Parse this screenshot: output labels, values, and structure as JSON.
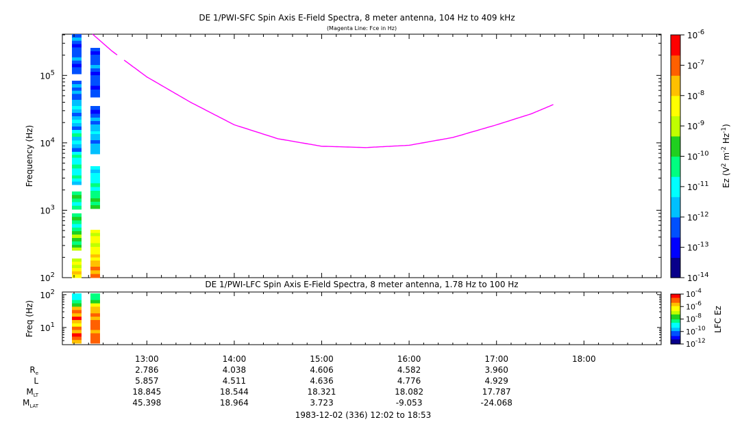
{
  "colors": {
    "fce_line": "#ff00ff",
    "colormap": [
      "#08008a",
      "#0000ff",
      "#0050ff",
      "#00c0ff",
      "#00ffff",
      "#00ff80",
      "#20d020",
      "#c0ff00",
      "#ffff00",
      "#ffc000",
      "#ff6000",
      "#ff0000"
    ]
  },
  "chart_data": [
    {
      "type": "heatmap",
      "title": "DE 1/PWI-SFC  Spin Axis E-Field Spectra, 8 meter antenna, 104 Hz to 409 kHz",
      "subtitle": "(Magenta Line: Fce in Hz)",
      "ylabel": "Frequency (Hz)",
      "y_scale": "log",
      "ylim": [
        100,
        409000
      ],
      "y_ticks": [
        {
          "base": "10",
          "exp": "2"
        },
        {
          "base": "10",
          "exp": "3"
        },
        {
          "base": "10",
          "exp": "4"
        },
        {
          "base": "10",
          "exp": "5"
        }
      ],
      "colorbar": {
        "label_main": "Ez (V",
        "label_sup1": "2",
        "label_mid": " m",
        "label_sup2": "-2",
        "label_mid2": " Hz",
        "label_sup3": "-1",
        "label_end": ")",
        "scale": "log",
        "range": [
          1e-14,
          1e-06
        ],
        "ticks": [
          {
            "base": "10",
            "exp": "-6"
          },
          {
            "base": "10",
            "exp": "-7"
          },
          {
            "base": "10",
            "exp": "-8"
          },
          {
            "base": "10",
            "exp": "-9"
          },
          {
            "base": "10",
            "exp": "-10"
          },
          {
            "base": "10",
            "exp": "-11"
          },
          {
            "base": "10",
            "exp": "-12"
          },
          {
            "base": "10",
            "exp": "-13"
          },
          {
            "base": "10",
            "exp": "-14"
          }
        ]
      },
      "fce_series": {
        "name": "Fce",
        "points": [
          {
            "t": 12.38,
            "f": 409000
          },
          {
            "t": 12.6,
            "f": 230000
          },
          {
            "t": 13.0,
            "f": 95000
          },
          {
            "t": 13.5,
            "f": 40000
          },
          {
            "t": 14.0,
            "f": 18500
          },
          {
            "t": 14.5,
            "f": 11500
          },
          {
            "t": 15.0,
            "f": 8900
          },
          {
            "t": 15.5,
            "f": 8500
          },
          {
            "t": 16.0,
            "f": 9200
          },
          {
            "t": 16.5,
            "f": 12000
          },
          {
            "t": 17.0,
            "f": 18500
          },
          {
            "t": 17.4,
            "f": 27000
          },
          {
            "t": 17.65,
            "f": 37000
          }
        ],
        "gap": [
          12.66,
          12.73
        ]
      }
    },
    {
      "type": "heatmap",
      "title": "DE 1/PWI-LFC  Spin Axis E-Field Spectra, 8 meter antenna, 1.78 Hz to 100 Hz",
      "ylabel": "Freq (Hz)",
      "y_scale": "log",
      "ylim": [
        3,
        120
      ],
      "y_ticks": [
        {
          "base": "10",
          "exp": "1"
        },
        {
          "base": "10",
          "exp": "2"
        }
      ],
      "colorbar": {
        "label": "LFC Ez",
        "scale": "log",
        "range": [
          1e-12,
          0.0001
        ],
        "ticks": [
          {
            "base": "10",
            "exp": "-4"
          },
          {
            "base": "10",
            "exp": "-6"
          },
          {
            "base": "10",
            "exp": "-8"
          },
          {
            "base": "10",
            "exp": "-10"
          },
          {
            "base": "10",
            "exp": "-12"
          }
        ]
      }
    }
  ],
  "x_axis": {
    "range_hours": [
      12.0333,
      18.8833
    ],
    "tick_values": [
      13,
      14,
      15,
      16,
      17,
      18
    ],
    "tick_labels": [
      "13:00",
      "14:00",
      "15:00",
      "16:00",
      "17:00",
      "18:00"
    ]
  },
  "ephemeris": {
    "rows": [
      {
        "label": "R",
        "sub": "e",
        "values": [
          "2.786",
          "4.038",
          "4.606",
          "4.582",
          "3.960"
        ]
      },
      {
        "label": "L",
        "sub": "",
        "values": [
          "5.857",
          "4.511",
          "4.636",
          "4.776",
          "4.929"
        ]
      },
      {
        "label": "M",
        "sub": "LT",
        "values": [
          "18.845",
          "18.544",
          "18.321",
          "18.082",
          "17.787"
        ]
      },
      {
        "label": "M",
        "sub": "LAT",
        "values": [
          "45.398",
          "18.964",
          "3.723",
          "-9.053",
          "-24.068"
        ]
      }
    ]
  },
  "footer": "1983-12-02 (336) 12:02 to 18:53"
}
